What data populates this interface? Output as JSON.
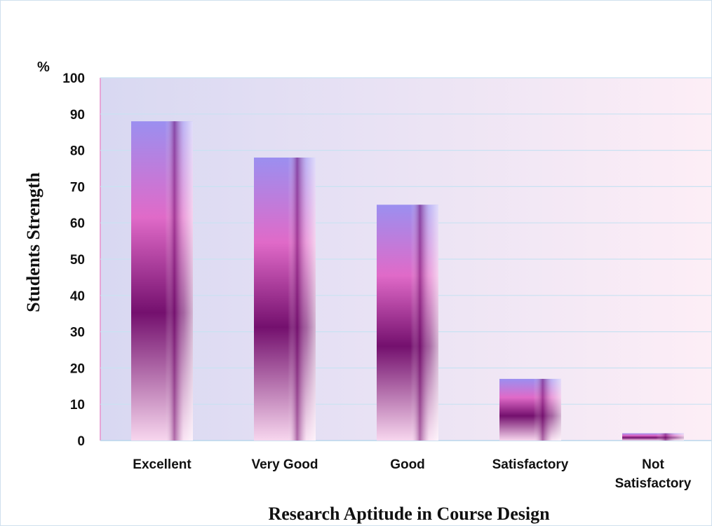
{
  "chart_data": {
    "type": "bar",
    "title": "",
    "xlabel": "Research Aptitude in Course Design",
    "ylabel": "Students Strength",
    "y_unit": "%",
    "ylim": [
      0,
      100
    ],
    "y_ticks": [
      0,
      10,
      20,
      30,
      40,
      50,
      60,
      70,
      80,
      90,
      100
    ],
    "categories": [
      [
        "Excellent"
      ],
      [
        "Very Good"
      ],
      [
        "Good"
      ],
      [
        "Satisfactory"
      ],
      [
        "Not",
        "Satisfactory"
      ]
    ],
    "values": [
      88,
      78,
      65,
      17,
      2
    ],
    "grid": true,
    "legend": "none",
    "colors": {
      "plot_left": "#d8d8f2",
      "plot_right": "#fdeef6",
      "gridline": "#c9e2f2",
      "bar_top": "#9b8ff0",
      "bar_pink": "#e06ac8",
      "bar_dark": "#74106e",
      "bar_light": "#f7d6ee"
    }
  }
}
